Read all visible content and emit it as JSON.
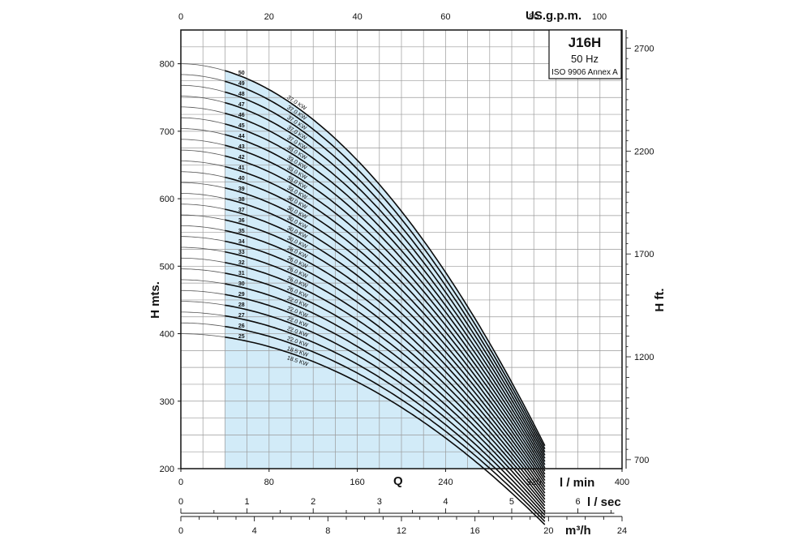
{
  "chart_data": {
    "type": "line",
    "title": "J16H",
    "subtitle_1": "50 Hz",
    "subtitle_2": "ISO 9906 Annex A",
    "axes": {
      "x_lpm": {
        "label": "l / min",
        "range": [
          0,
          400
        ],
        "ticks": [
          "0",
          "80",
          "160",
          "240",
          "320",
          "400"
        ]
      },
      "x_gpm": {
        "label": "US.g.p.m.",
        "range": [
          0,
          100
        ],
        "ticks": [
          "0",
          "20",
          "40",
          "60",
          "80",
          "100"
        ]
      },
      "x_lsec": {
        "label": "l / sec",
        "range": [
          0,
          6.667
        ],
        "ticks": [
          "0",
          "1",
          "2",
          "3",
          "4",
          "5",
          "6"
        ]
      },
      "x_m3h": {
        "label": "m³/h",
        "range": [
          0,
          24
        ],
        "ticks": [
          "0",
          "4",
          "8",
          "12",
          "16",
          "20",
          "24"
        ]
      },
      "y_m": {
        "label": "H mts.",
        "range": [
          200,
          850
        ],
        "ticks": [
          "200",
          "300",
          "400",
          "500",
          "600",
          "700",
          "800"
        ]
      },
      "y_ft": {
        "label": "H ft.",
        "ticks": [
          "700",
          "1200",
          "1700",
          "2200",
          "2700"
        ]
      },
      "q_label": "Q"
    },
    "grid": true,
    "operating_range_lpm": [
      40,
      330
    ],
    "series": [
      {
        "name": "50",
        "power": "37.0 KW",
        "shutoff": 800,
        "h_at_330": 234
      },
      {
        "name": "49",
        "power": "37.0 KW",
        "shutoff": 784,
        "h_at_330": 229
      },
      {
        "name": "48",
        "power": "37.0 KW",
        "shutoff": 768,
        "h_at_330": 225
      },
      {
        "name": "47",
        "power": "37.0 KW",
        "shutoff": 752,
        "h_at_330": 220
      },
      {
        "name": "46",
        "power": "37.0 KW",
        "shutoff": 736,
        "h_at_330": 215
      },
      {
        "name": "45",
        "power": "33.0 KW",
        "shutoff": 720,
        "h_at_330": 211
      },
      {
        "name": "44",
        "power": "33.0 KW",
        "shutoff": 704,
        "h_at_330": 206
      },
      {
        "name": "43",
        "power": "33.0 KW",
        "shutoff": 688,
        "h_at_330": 201
      },
      {
        "name": "42",
        "power": "33.0 KW",
        "shutoff": 672,
        "h_at_330": 197
      },
      {
        "name": "41",
        "power": "33.0 KW",
        "shutoff": 656,
        "h_at_330": 192
      },
      {
        "name": "40",
        "power": "30.0 KW",
        "shutoff": 640,
        "h_at_330": 187
      },
      {
        "name": "39",
        "power": "30.0 KW",
        "shutoff": 624,
        "h_at_330": 183
      },
      {
        "name": "38",
        "power": "30.0 KW",
        "shutoff": 608,
        "h_at_330": 178
      },
      {
        "name": "37",
        "power": "30.0 KW",
        "shutoff": 592,
        "h_at_330": 173
      },
      {
        "name": "36",
        "power": "30.0 KW",
        "shutoff": 576,
        "h_at_330": 169
      },
      {
        "name": "35",
        "power": "26.0 KW",
        "shutoff": 560,
        "h_at_330": 164
      },
      {
        "name": "34",
        "power": "26.0 KW",
        "shutoff": 544,
        "h_at_330": 159
      },
      {
        "name": "33",
        "power": "26.0 KW",
        "shutoff": 528,
        "h_at_330": 155
      },
      {
        "name": "32",
        "power": "26.0 KW",
        "shutoff": 512,
        "h_at_330": 150
      },
      {
        "name": "31",
        "power": "26.0 KW",
        "shutoff": 496,
        "h_at_330": 145
      },
      {
        "name": "30",
        "power": "22.0 KW",
        "shutoff": 480,
        "h_at_330": 141
      },
      {
        "name": "29",
        "power": "22.0 KW",
        "shutoff": 464,
        "h_at_330": 136
      },
      {
        "name": "28",
        "power": "22.0 KW",
        "shutoff": 448,
        "h_at_330": 131
      },
      {
        "name": "27",
        "power": "22.0 KW",
        "shutoff": 432,
        "h_at_330": 127
      },
      {
        "name": "26",
        "power": "22.0 KW",
        "shutoff": 416,
        "h_at_330": 122
      },
      {
        "name": "25",
        "power": "18.5 KW",
        "shutoff": 400,
        "h_at_330": 117
      },
      {
        "name": "",
        "power": "18.5 KW",
        "shutoff": 0,
        "h_at_330": 0
      }
    ]
  }
}
